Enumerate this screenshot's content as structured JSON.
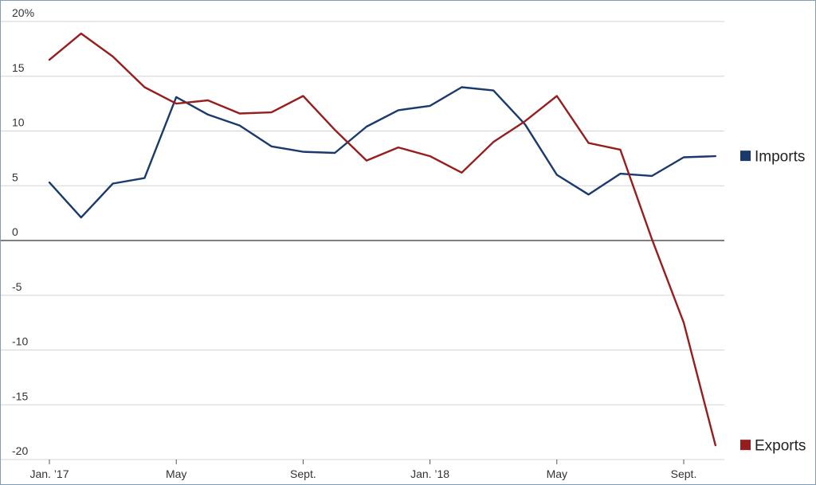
{
  "chart_data": {
    "type": "line",
    "title": "",
    "xlabel": "",
    "ylabel": "",
    "ylim": [
      -20,
      20
    ],
    "y_ticks": [
      20,
      15,
      10,
      5,
      0,
      -5,
      -10,
      -15,
      -20
    ],
    "y_tick_labels": [
      "20%",
      "15",
      "10",
      "5",
      "0",
      "-5",
      "-10",
      "-15",
      "-20"
    ],
    "x": [
      "Jan. 2017",
      "Feb. 2017",
      "Mar. 2017",
      "Apr. 2017",
      "May 2017",
      "Jun. 2017",
      "Jul. 2017",
      "Aug. 2017",
      "Sep. 2017",
      "Oct. 2017",
      "Nov. 2017",
      "Dec. 2017",
      "Jan. 2018",
      "Feb. 2018",
      "Mar. 2018",
      "Apr. 2018",
      "May 2018",
      "Jun. 2018",
      "Jul. 2018",
      "Aug. 2018",
      "Sep. 2018",
      "Oct. 2018"
    ],
    "x_ticks": [
      {
        "index": 0,
        "label": "Jan. ’17"
      },
      {
        "index": 4,
        "label": "May"
      },
      {
        "index": 8,
        "label": "Sept."
      },
      {
        "index": 12,
        "label": "Jan. ’18"
      },
      {
        "index": 16,
        "label": "May"
      },
      {
        "index": 20,
        "label": "Sept."
      }
    ],
    "grid": true,
    "zero_line": true,
    "legend": "right, at end of each line",
    "series": [
      {
        "name": "Imports",
        "color": "#1a3a6e",
        "values": [
          5.3,
          2.1,
          5.2,
          5.7,
          13.1,
          11.5,
          10.5,
          8.6,
          8.1,
          8.0,
          10.4,
          11.9,
          12.3,
          14.0,
          13.7,
          10.6,
          6.0,
          4.2,
          6.1,
          5.9,
          7.6,
          7.7
        ]
      },
      {
        "name": "Exports",
        "color": "#961e1e",
        "values": [
          16.5,
          18.9,
          16.8,
          14.0,
          12.5,
          12.8,
          11.6,
          11.7,
          13.2,
          10.1,
          7.3,
          8.5,
          7.7,
          6.2,
          9.0,
          10.9,
          13.2,
          8.9,
          8.3,
          0.1,
          -7.5,
          -18.7
        ]
      }
    ]
  }
}
